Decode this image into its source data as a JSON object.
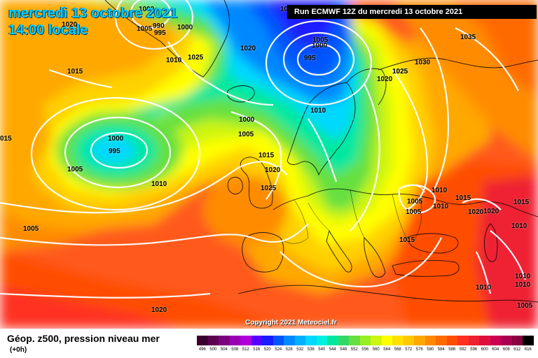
{
  "header": {
    "date_line": "mercredi 13 octobre 2021",
    "time_line": "14:00 locale",
    "run_info": "Run ECMWF 12Z du mercredi 13 octobre 2021",
    "copyright": "Copyright 2021 Meteociel.fr"
  },
  "legend": {
    "title": "Géop. z500, pression niveau mer",
    "subtitle": "(+0h)",
    "scale_values": [
      "496",
      "500",
      "504",
      "508",
      "512",
      "516",
      "520",
      "524",
      "528",
      "532",
      "536",
      "540",
      "544",
      "548",
      "552",
      "556",
      "560",
      "564",
      "568",
      "572",
      "576",
      "580",
      "584",
      "588",
      "592",
      "596",
      "600",
      "604",
      "608",
      "612",
      "616"
    ],
    "scale_colors": [
      "#3b0030",
      "#5c0050",
      "#7a0080",
      "#9900b3",
      "#b000d9",
      "#5500ff",
      "#1a1aff",
      "#0055ff",
      "#0088ff",
      "#00b0ff",
      "#00d8ff",
      "#00f0e0",
      "#00e8a0",
      "#33d966",
      "#66e040",
      "#99ee22",
      "#ccf511",
      "#ffff00",
      "#ffe000",
      "#ffc800",
      "#ffa800",
      "#ff8800",
      "#ff6a00",
      "#ff4d00",
      "#ff3020",
      "#ee2030",
      "#dd1040",
      "#cc0050",
      "#aa0050",
      "#880040",
      "#000000"
    ]
  },
  "pressure_labels": [
    {
      "text": "1020"
    },
    {
      "text": "1005"
    },
    {
      "text": "990"
    },
    {
      "text": "995"
    },
    {
      "text": "1000"
    },
    {
      "text": "1005"
    },
    {
      "text": "995"
    },
    {
      "text": "1035"
    },
    {
      "text": "1015"
    },
    {
      "text": "1010"
    },
    {
      "text": "1025"
    },
    {
      "text": "1020"
    },
    {
      "text": "1025"
    },
    {
      "text": "1030"
    },
    {
      "text": "1020"
    },
    {
      "text": "1000"
    },
    {
      "text": "1000"
    },
    {
      "text": "995"
    },
    {
      "text": "1005"
    },
    {
      "text": "1010"
    },
    {
      "text": "1000"
    },
    {
      "text": "1005"
    },
    {
      "text": "1015"
    },
    {
      "text": "1020"
    },
    {
      "text": "1005"
    },
    {
      "text": "1010"
    },
    {
      "text": "1025"
    },
    {
      "text": "1010"
    },
    {
      "text": "1005"
    },
    {
      "text": "1005"
    },
    {
      "text": "1010"
    },
    {
      "text": "1015"
    },
    {
      "text": "1015"
    },
    {
      "text": "1020"
    },
    {
      "text": "1020"
    },
    {
      "text": "1015"
    },
    {
      "text": "1010"
    },
    {
      "text": "1010"
    },
    {
      "text": "1010"
    },
    {
      "text": "1010"
    },
    {
      "text": "1020"
    },
    {
      "text": "1005"
    },
    {
      "text": "015"
    },
    {
      "text": "1000"
    },
    {
      "text": "1000"
    },
    {
      "text": "1025"
    }
  ]
}
